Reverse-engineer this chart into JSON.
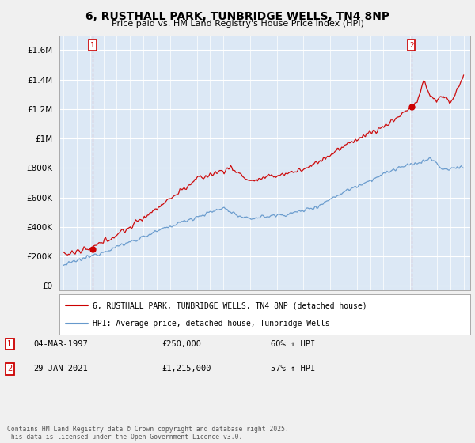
{
  "title": "6, RUSTHALL PARK, TUNBRIDGE WELLS, TN4 8NP",
  "subtitle": "Price paid vs. HM Land Registry's House Price Index (HPI)",
  "red_label": "6, RUSTHALL PARK, TUNBRIDGE WELLS, TN4 8NP (detached house)",
  "blue_label": "HPI: Average price, detached house, Tunbridge Wells",
  "annotation1_date": "04-MAR-1997",
  "annotation1_price": "£250,000",
  "annotation1_hpi": "60% ↑ HPI",
  "annotation1_year": 1997.17,
  "annotation1_value": 250000,
  "annotation2_date": "29-JAN-2021",
  "annotation2_price": "£1,215,000",
  "annotation2_hpi": "57% ↑ HPI",
  "annotation2_year": 2021.08,
  "annotation2_value": 1215000,
  "ylim_max": 1700000,
  "footer": "Contains HM Land Registry data © Crown copyright and database right 2025.\nThis data is licensed under the Open Government Licence v3.0.",
  "bg_color": "#f0f0f0",
  "plot_bg_color": "#dce8f5",
  "red_color": "#cc0000",
  "blue_color": "#6699cc",
  "grid_color": "#ffffff"
}
